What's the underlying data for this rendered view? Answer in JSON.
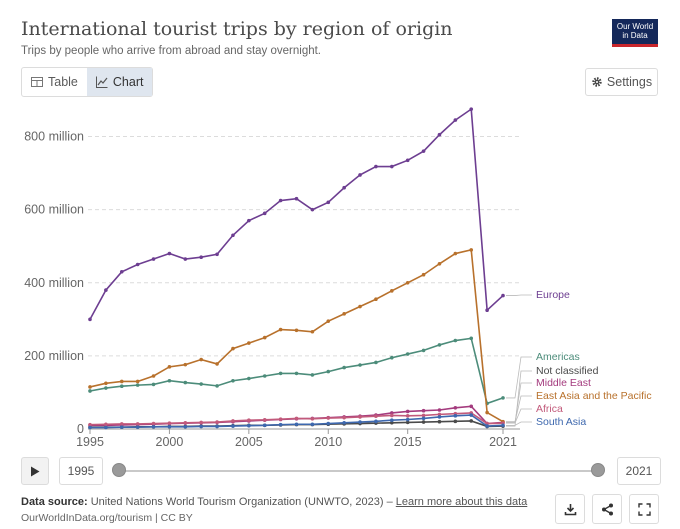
{
  "header": {
    "title": "International tourist trips by region of origin",
    "subtitle": "Trips by people who arrive from abroad and stay overnight.",
    "logo_line1": "Our World",
    "logo_line2": "in Data"
  },
  "tabs": [
    {
      "label": "Table",
      "icon": "table-icon",
      "active": false
    },
    {
      "label": "Chart",
      "icon": "line-chart-icon",
      "active": true
    }
  ],
  "settings_label": "Settings",
  "timeline": {
    "start_label": "1995",
    "end_label": "2021",
    "start_year": 1995,
    "end_year": 2021
  },
  "footer": {
    "source_prefix": "Data source:",
    "source_text": "United Nations World Tourism Organization (UNWTO, 2023) –",
    "learn_more": "Learn more about this data",
    "url_line": "OurWorldInData.org/tourism | CC BY"
  },
  "chart_data": {
    "type": "line",
    "title": "International tourist trips by region of origin",
    "xlabel": "",
    "ylabel": "",
    "xlim": [
      1995,
      2021
    ],
    "ylim": [
      0,
      900000000
    ],
    "y_ticks": [
      {
        "value": 0,
        "label": "0"
      },
      {
        "value": 200000000,
        "label": "200 million"
      },
      {
        "value": 400000000,
        "label": "400 million"
      },
      {
        "value": 600000000,
        "label": "600 million"
      },
      {
        "value": 800000000,
        "label": "800 million"
      }
    ],
    "x_ticks": [
      1995,
      2000,
      2005,
      2010,
      2015,
      2021
    ],
    "grid": "horizontal dashed",
    "legend": "inline labels at right",
    "x": [
      1995,
      1996,
      1997,
      1998,
      1999,
      2000,
      2001,
      2002,
      2003,
      2004,
      2005,
      2006,
      2007,
      2008,
      2009,
      2010,
      2011,
      2012,
      2013,
      2014,
      2015,
      2016,
      2017,
      2018,
      2019,
      2020,
      2021
    ],
    "series": [
      {
        "name": "Europe",
        "color": "#6d3e91",
        "values": [
          300000000,
          380000000,
          430000000,
          450000000,
          465000000,
          480000000,
          465000000,
          470000000,
          478000000,
          530000000,
          570000000,
          590000000,
          625000000,
          630000000,
          600000000,
          620000000,
          660000000,
          695000000,
          718000000,
          718000000,
          735000000,
          760000000,
          805000000,
          845000000,
          875000000,
          325000000,
          365000000
        ]
      },
      {
        "name": "Americas",
        "color": "#4c8c7a",
        "values": [
          104000000,
          112000000,
          117000000,
          120000000,
          122000000,
          132000000,
          127000000,
          123000000,
          118000000,
          132000000,
          138000000,
          145000000,
          152000000,
          152000000,
          148000000,
          157000000,
          168000000,
          175000000,
          182000000,
          195000000,
          205000000,
          215000000,
          230000000,
          242000000,
          248000000,
          70000000,
          85000000
        ]
      },
      {
        "name": "Not classified",
        "color": "#4a4a4a",
        "values": [
          5000000,
          5000000,
          5000000,
          6000000,
          6000000,
          7000000,
          7000000,
          8000000,
          8000000,
          9000000,
          10000000,
          10000000,
          11000000,
          12000000,
          12000000,
          13000000,
          14000000,
          15000000,
          16000000,
          17000000,
          18000000,
          19000000,
          20000000,
          21000000,
          22000000,
          7000000,
          8000000
        ]
      },
      {
        "name": "Middle East",
        "color": "#a43b7e",
        "values": [
          10000000,
          10000000,
          11000000,
          12000000,
          13000000,
          15000000,
          16000000,
          17000000,
          18000000,
          20000000,
          22000000,
          24000000,
          26000000,
          28000000,
          29000000,
          31000000,
          33000000,
          35000000,
          38000000,
          44000000,
          48000000,
          50000000,
          52000000,
          58000000,
          62000000,
          15000000,
          18000000
        ]
      },
      {
        "name": "East Asia and the Pacific",
        "color": "#b8712c",
        "values": [
          115000000,
          125000000,
          130000000,
          130000000,
          145000000,
          170000000,
          176000000,
          190000000,
          178000000,
          220000000,
          235000000,
          250000000,
          272000000,
          270000000,
          266000000,
          295000000,
          315000000,
          335000000,
          355000000,
          378000000,
          400000000,
          422000000,
          452000000,
          480000000,
          490000000,
          45000000,
          20000000
        ]
      },
      {
        "name": "Africa",
        "color": "#c25a7b",
        "values": [
          12000000,
          13000000,
          14000000,
          14000000,
          15000000,
          16000000,
          17000000,
          18000000,
          19000000,
          22000000,
          24000000,
          25000000,
          27000000,
          29000000,
          28000000,
          30000000,
          31000000,
          33000000,
          35000000,
          37000000,
          36000000,
          37000000,
          40000000,
          42000000,
          44000000,
          15000000,
          16000000
        ]
      },
      {
        "name": "South Asia",
        "color": "#3e68ae",
        "values": [
          4000000,
          4000000,
          5000000,
          5000000,
          6000000,
          6000000,
          6000000,
          7000000,
          7000000,
          8000000,
          9000000,
          10000000,
          12000000,
          13000000,
          13000000,
          15000000,
          17000000,
          19000000,
          21000000,
          24000000,
          26000000,
          29000000,
          33000000,
          36000000,
          38000000,
          8000000,
          10000000
        ]
      }
    ]
  }
}
